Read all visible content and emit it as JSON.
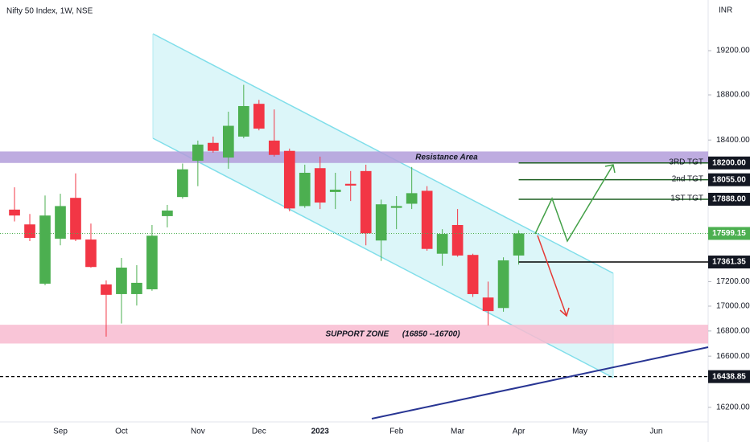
{
  "chart_data": {
    "type": "candlestick",
    "title": "Nifty 50 Index, 1W, NSE",
    "currency": "INR",
    "log_scale": true,
    "grid": false,
    "up_color": "#4caf50",
    "down_color": "#f23645",
    "categories": [
      null,
      null,
      null,
      "Sep",
      null,
      null,
      null,
      "Oct",
      null,
      null,
      null,
      null,
      "Nov",
      null,
      null,
      null,
      "Dec",
      null,
      null,
      null,
      "2023",
      null,
      null,
      null,
      null,
      "Feb",
      null,
      null,
      null,
      "Mar",
      null,
      null,
      null,
      "Apr",
      null,
      null,
      null,
      "May",
      null,
      null,
      null,
      null,
      "Jun"
    ],
    "open": [
      17800,
      17675,
      17183,
      17555,
      17900,
      17548,
      17177,
      17098,
      17098,
      17137,
      17745,
      17907,
      18219,
      18375,
      18247,
      18430,
      18720,
      18395,
      18305,
      17830,
      18155,
      17950,
      18020,
      18130,
      17540,
      17815,
      17850,
      17960,
      17430,
      17670,
      17420,
      17070,
      16985,
      17415,
      null,
      null,
      null,
      null,
      null,
      null,
      null,
      null,
      null
    ],
    "high": [
      17990,
      17763,
      17920,
      17935,
      18110,
      17682,
      17210,
      17395,
      17335,
      17670,
      17840,
      18195,
      18395,
      18430,
      18650,
      18890,
      18755,
      18670,
      18325,
      18185,
      18255,
      18115,
      18130,
      18185,
      17885,
      17915,
      18165,
      18000,
      17635,
      17805,
      17430,
      17200,
      17400,
      17625,
      null,
      null,
      null,
      null,
      null,
      null,
      null,
      null,
      null
    ],
    "low": [
      17700,
      17535,
      17170,
      17500,
      17535,
      17315,
      16755,
      16860,
      17005,
      17125,
      17650,
      17893,
      18000,
      18290,
      18150,
      18415,
      18485,
      18255,
      17785,
      17815,
      17805,
      17805,
      17873,
      17500,
      17370,
      17635,
      17805,
      17455,
      17330,
      17405,
      17075,
      16845,
      16955,
      17340,
      null,
      null,
      null,
      null,
      null,
      null,
      null,
      null,
      null
    ],
    "close": [
      17750,
      17562,
      17750,
      17830,
      17548,
      17320,
      17092,
      17315,
      17190,
      17580,
      17792,
      18145,
      18360,
      18305,
      18525,
      18700,
      18500,
      18270,
      17810,
      18115,
      17860,
      17970,
      18005,
      17600,
      17845,
      17830,
      17940,
      17470,
      17595,
      17415,
      17098,
      16960,
      17375,
      17599.15,
      null,
      null,
      null,
      null,
      null,
      null,
      null,
      null,
      null
    ],
    "xlim": [
      -0.95,
      45.4
    ],
    "ylim": [
      16088,
      19669
    ],
    "yticks": [
      {
        "value": 16200,
        "label": "16200.00"
      },
      {
        "value": 16600,
        "label": "16600.00"
      },
      {
        "value": 16800,
        "label": "16800.00"
      },
      {
        "value": 17000,
        "label": "17000.00"
      },
      {
        "value": 17200,
        "label": "17200.00"
      },
      {
        "value": 18400,
        "label": "18400.00"
      },
      {
        "value": 18800,
        "label": "18800.00"
      },
      {
        "value": 19200,
        "label": "19200.00"
      }
    ],
    "zones": [
      {
        "name": "Resistance Area",
        "range": [
          18200,
          18300
        ],
        "color": "#b39ddb"
      },
      {
        "name": "SUPPORT ZONE      (16850 --16700)",
        "range": [
          16700,
          16850
        ],
        "color": "#f8bbd0"
      }
    ],
    "levels": [
      {
        "name": "3RD TGT",
        "price": {
          "value": 18200,
          "label": "18200.00"
        },
        "color": "#1b5e20"
      },
      {
        "name": "2nd TGT",
        "price": {
          "value": 18055,
          "label": "18055.00"
        },
        "color": "#1b5e20"
      },
      {
        "name": "1ST TGT",
        "price": {
          "value": 17888,
          "label": "17888.00"
        },
        "color": "#1b5e20"
      },
      {
        "price": {
          "value": 17361.35,
          "label": "17361.35"
        },
        "color": "#000000"
      },
      {
        "price": {
          "value": 16438.85,
          "label": "16438.85"
        },
        "color": "#000000",
        "dashed": true
      }
    ]
  }
}
